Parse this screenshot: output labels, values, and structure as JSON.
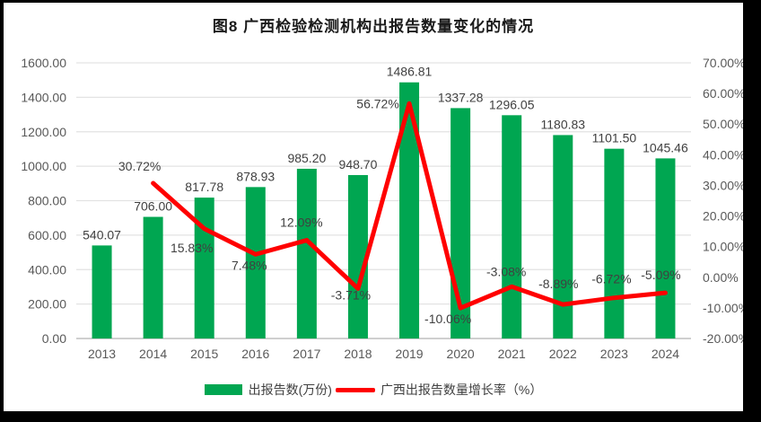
{
  "title": "图8  广西检验检测机构出报告数量变化的情况",
  "colors": {
    "bar": "#00A651",
    "line": "#FF0000",
    "axis_text": "#595959",
    "data_label": "#404040",
    "gridline": "#e3e3e3",
    "baseline": "#cfcfcf",
    "frame": "#000000",
    "background": "#ffffff"
  },
  "legend": {
    "items": [
      {
        "label": "出报告数(万份)",
        "swatch": "bar",
        "color": "#00A651"
      },
      {
        "label": "广西出报告数量增长率（%）",
        "swatch": "line",
        "color": "#FF0000"
      }
    ]
  },
  "chart_data": {
    "type": "bar",
    "subtype": "combo-bar-line",
    "title": "图8  广西检验检测机构出报告数量变化的情况",
    "categories": [
      "2013",
      "2014",
      "2015",
      "2016",
      "2017",
      "2018",
      "2019",
      "2020",
      "2021",
      "2022",
      "2023",
      "2024"
    ],
    "series": [
      {
        "name": "出报告数(万份)",
        "type": "bar",
        "axis": "left",
        "color": "#00A651",
        "values": [
          540.07,
          706.0,
          817.78,
          878.93,
          985.2,
          948.7,
          1486.81,
          1337.28,
          1296.05,
          1180.83,
          1101.5,
          1045.46
        ],
        "labels": [
          "540.07",
          "706.00",
          "817.78",
          "878.93",
          "985.20",
          "948.70",
          "1486.81",
          "1337.28",
          "1296.05",
          "1180.83",
          "1101.50",
          "1045.46"
        ]
      },
      {
        "name": "广西出报告数量增长率（%）",
        "type": "line",
        "axis": "right",
        "color": "#FF0000",
        "values": [
          null,
          30.72,
          15.83,
          7.48,
          12.09,
          -3.71,
          56.72,
          -10.06,
          -3.08,
          -8.89,
          -6.72,
          -5.09
        ],
        "labels": [
          null,
          "30.72%",
          "15.83%",
          "7.48%",
          "12.09%",
          "-3.71%",
          "56.72%",
          "-10.06%",
          "-3.08%",
          "-8.89%",
          "-6.72%",
          "-5.09%"
        ],
        "label_offsets": [
          null,
          [
            -15,
            -14
          ],
          [
            -14,
            26
          ],
          [
            -7,
            17
          ],
          [
            -6,
            -15
          ],
          [
            -8,
            12
          ],
          [
            -35,
            5
          ],
          [
            -14,
            17
          ],
          [
            -6,
            -12
          ],
          [
            -5,
            -18
          ],
          [
            -3,
            -16
          ],
          [
            -5,
            -15
          ]
        ]
      }
    ],
    "left_axis": {
      "min": 0,
      "max": 1600,
      "step": 200,
      "ticks": [
        "0.00",
        "200.00",
        "400.00",
        "600.00",
        "800.00",
        "1000.00",
        "1200.00",
        "1400.00",
        "1600.00"
      ]
    },
    "right_axis": {
      "min": -20,
      "max": 70,
      "step": 10,
      "ticks": [
        "-20.00%",
        "-10.00%",
        "0.00%",
        "10.00%",
        "20.00%",
        "30.00%",
        "40.00%",
        "50.00%",
        "60.00%",
        "70.00%"
      ]
    },
    "grid": true,
    "legend_position": "bottom"
  }
}
